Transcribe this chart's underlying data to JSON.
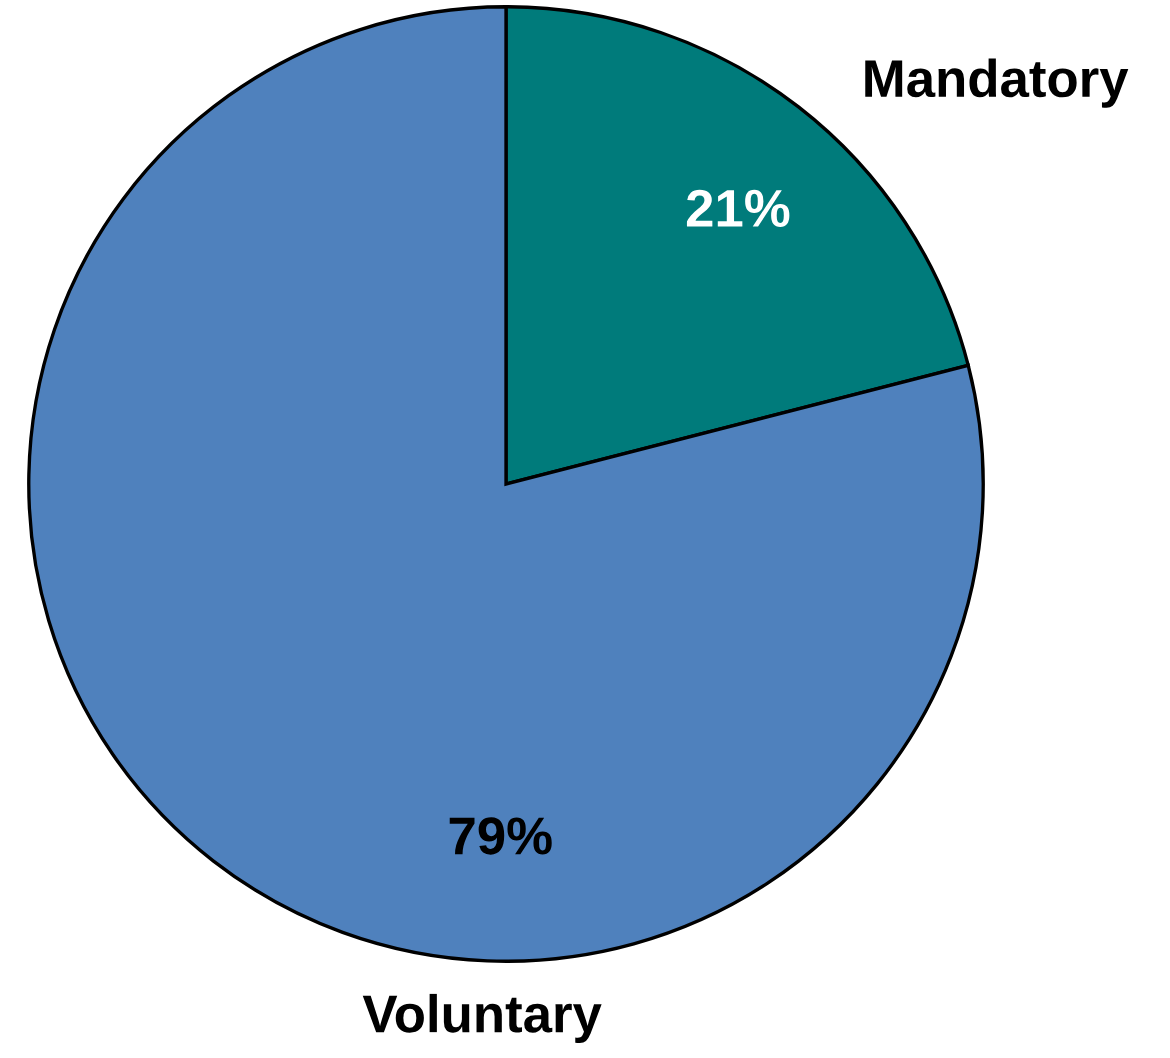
{
  "chart_data": {
    "type": "pie",
    "categories": [
      "Mandatory",
      "Voluntary"
    ],
    "values": [
      21,
      79
    ],
    "colors": [
      "#007b7b",
      "#4f81bd"
    ],
    "value_labels": [
      "21%",
      "79%"
    ]
  }
}
